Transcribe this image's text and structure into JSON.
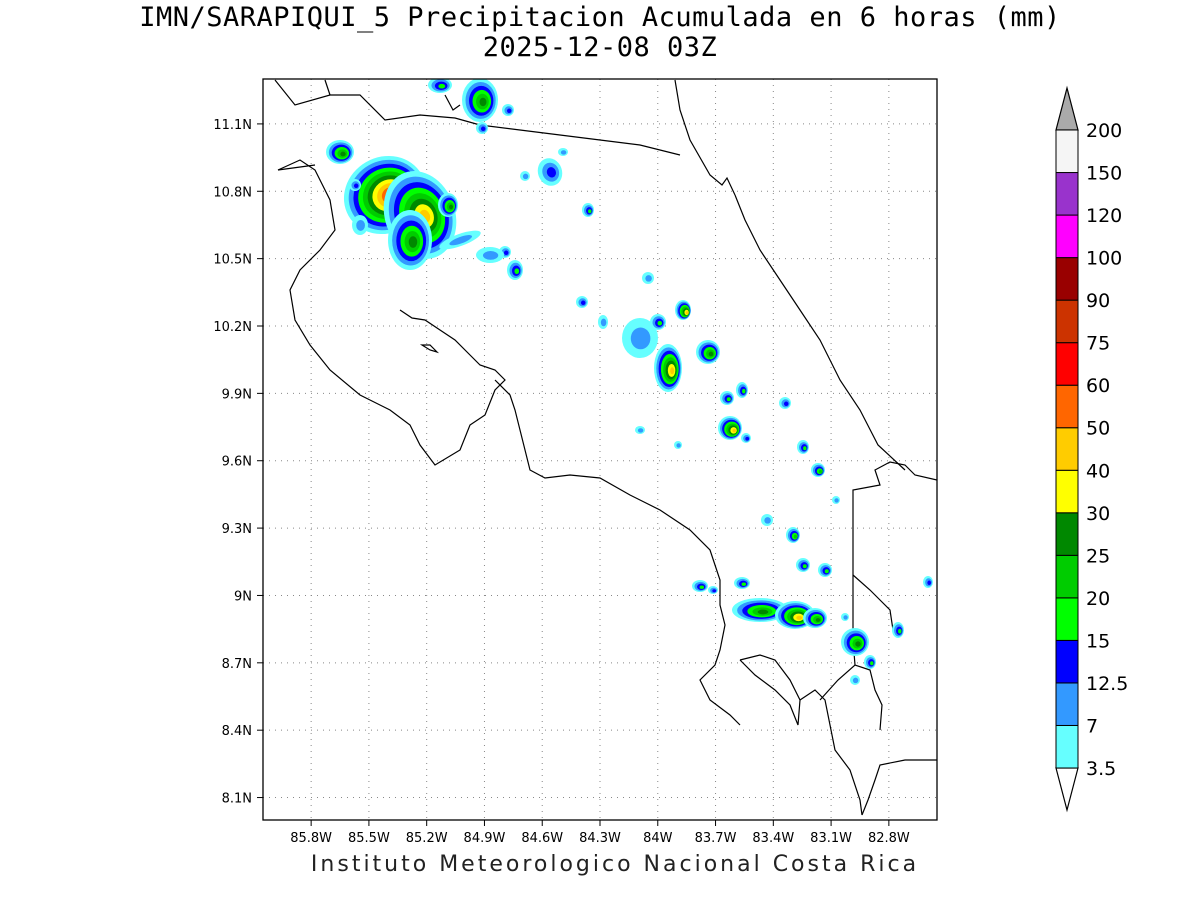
{
  "title_line1": "IMN/SARAPIQUI_5 Precipitacion Acumulada en 6 horas (mm)",
  "title_line2": "2025-12-08 03Z",
  "footer": "Instituto Meteorologico Nacional Costa Rica",
  "map": {
    "lon_range": [
      -86.05,
      -82.55
    ],
    "lat_range": [
      8.0,
      11.3
    ],
    "lon_ticks": [
      "85.8W",
      "85.5W",
      "85.2W",
      "84.9W",
      "84.6W",
      "84.3W",
      "84W",
      "83.7W",
      "83.4W",
      "83.1W",
      "82.8W"
    ],
    "lon_tick_values": [
      -85.8,
      -85.5,
      -85.2,
      -84.9,
      -84.6,
      -84.3,
      -84.0,
      -83.7,
      -83.4,
      -83.1,
      -82.8
    ],
    "lat_ticks": [
      "11.1N",
      "10.8N",
      "10.5N",
      "10.2N",
      "9.9N",
      "9.6N",
      "9.3N",
      "9N",
      "8.7N",
      "8.4N",
      "8.1N"
    ],
    "lat_tick_values": [
      11.1,
      10.8,
      10.5,
      10.2,
      9.9,
      9.6,
      9.3,
      9.0,
      8.7,
      8.4,
      8.1
    ],
    "grid": "dotted"
  },
  "colorbar": {
    "levels": [
      "3.5",
      "7",
      "12.5",
      "15",
      "20",
      "25",
      "30",
      "40",
      "50",
      "60",
      "75",
      "90",
      "100",
      "120",
      "150",
      "200"
    ],
    "colors": [
      "#66ffff",
      "#3399ff",
      "#0000ff",
      "#00ff00",
      "#00cc00",
      "#008800",
      "#ffff00",
      "#ffcc00",
      "#ff6600",
      "#ff0000",
      "#cc3300",
      "#990000",
      "#ff00ff",
      "#9933cc",
      "#f5f5f5",
      "#aaaaaa"
    ]
  }
}
